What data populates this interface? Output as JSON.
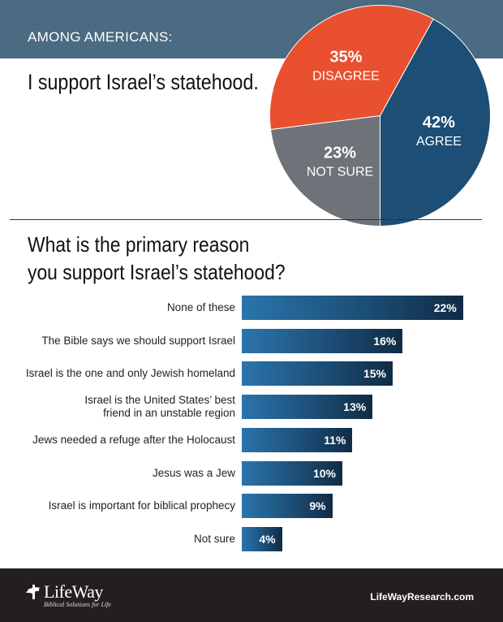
{
  "header": {
    "kicker": "AMONG AMERICANS:",
    "headline": "I support Israel’s statehood."
  },
  "question": [
    "What is the primary reason",
    "you support Israel’s statehood?"
  ],
  "colors": {
    "header_band": "#4a6b82",
    "agree": "#1c4e76",
    "not_sure": "#6d7378",
    "disagree": "#e8502f",
    "bar": "#1c4e76",
    "footer": "#231f20"
  },
  "chart_data": [
    {
      "type": "pie",
      "slices": [
        {
          "label": "AGREE",
          "value": 42,
          "value_text": "42%",
          "color": "#1c4e76"
        },
        {
          "label": "NOT SURE",
          "value": 23,
          "value_text": "23%",
          "color": "#6d7378"
        },
        {
          "label": "DISAGREE",
          "value": 35,
          "value_text": "35%",
          "color": "#e8502f"
        }
      ]
    },
    {
      "type": "bar",
      "orientation": "horizontal",
      "categories": [
        [
          "None of these"
        ],
        [
          "The Bible says we should support Israel"
        ],
        [
          "Israel is the one and only Jewish homeland"
        ],
        [
          "Israel is the United States’ best",
          "friend in an unstable region"
        ],
        [
          "Jews needed a refuge after the Holocaust"
        ],
        [
          "Jesus was a Jew"
        ],
        [
          "Israel is important for biblical prophecy"
        ],
        [
          "Not sure"
        ]
      ],
      "values": [
        22,
        16,
        15,
        13,
        11,
        10,
        9,
        4
      ],
      "value_labels": [
        "22%",
        "16%",
        "15%",
        "13%",
        "11%",
        "10%",
        "9%",
        "4%"
      ],
      "grid": false
    }
  ],
  "footer": {
    "logo_text": "LifeWay",
    "logo_tagline": "Biblical Solutions for Life",
    "site": "LifeWayResearch.com"
  }
}
